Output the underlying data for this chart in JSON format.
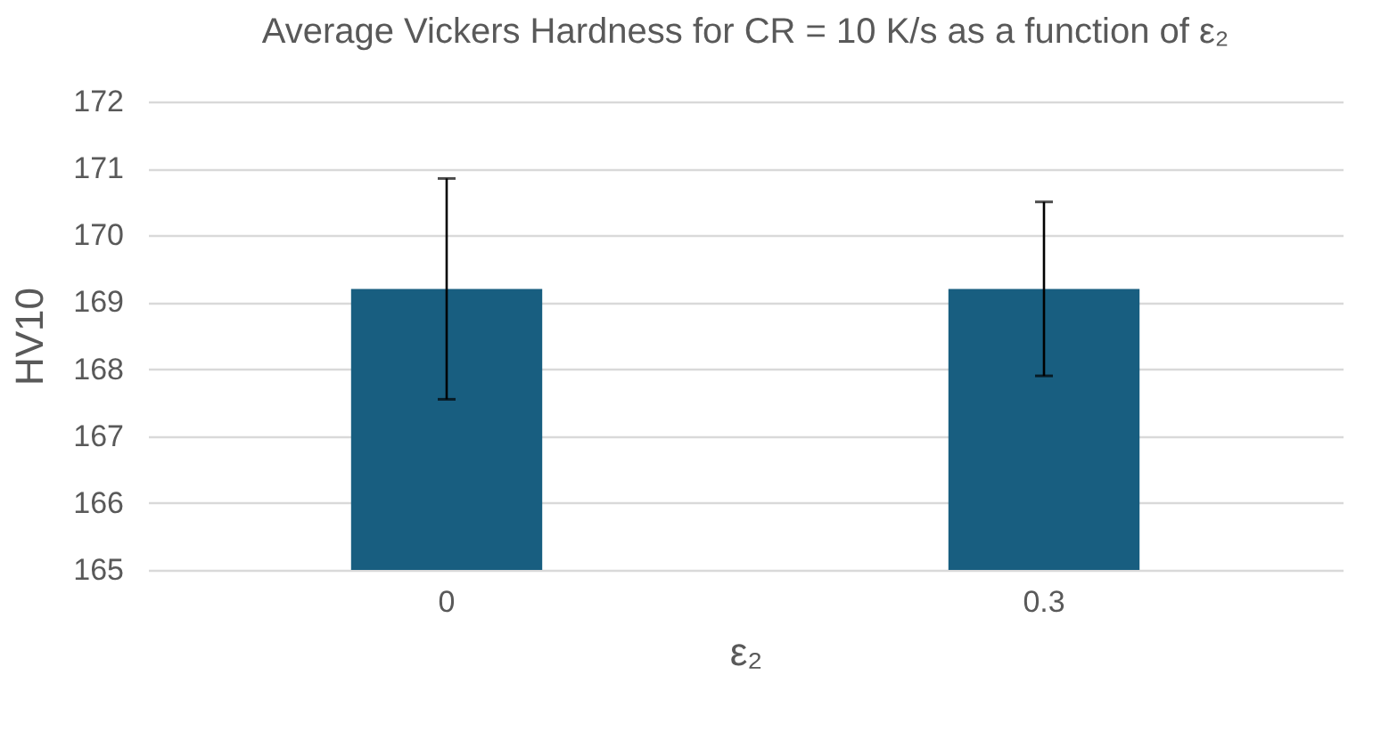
{
  "chart_data": {
    "type": "bar",
    "title": "Average Vickers Hardness for CR = 10 K/s as a function of ε₂",
    "xlabel": "ε₂",
    "ylabel": "HV10",
    "categories": [
      "0",
      "0.3"
    ],
    "values": [
      169.2,
      169.2
    ],
    "errors": [
      1.65,
      1.3
    ],
    "color": "#185e80",
    "ylim": [
      165,
      172
    ],
    "yticks": [
      165,
      166,
      167,
      168,
      169,
      170,
      171,
      172
    ],
    "grid": "y"
  }
}
